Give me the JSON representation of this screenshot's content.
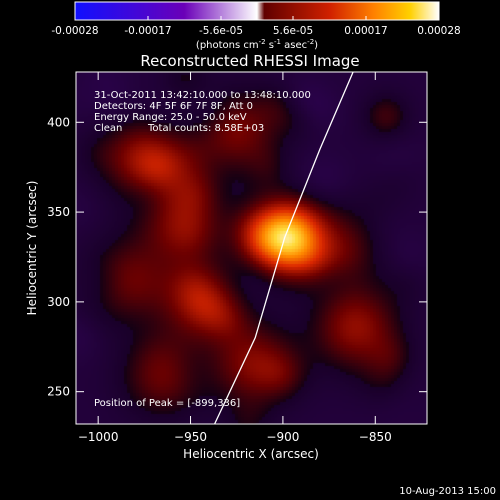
{
  "colorbar": {
    "ticks": [
      "-0.00028",
      "-0.00017",
      "-5.6e-05",
      "5.6e-05",
      "0.00017",
      "0.00028"
    ],
    "unit_main": "(photons cm",
    "unit_exp1": "-2",
    "unit_s": " s",
    "unit_exp2": "-1",
    "unit_asec": " asec",
    "unit_exp3": "-2",
    "unit_close": ")",
    "stops": [
      "#1010ff",
      "#6a00b8",
      "#ffffff",
      "#600000",
      "#d02000",
      "#ff8000",
      "#ffd000",
      "#ffffff"
    ]
  },
  "title": "Reconstructed RHESSI Image",
  "info": {
    "line1": "31-Oct-2011 13:42:10.000 to 13:48:10.000",
    "line2": "Detectors: 4F 5F 6F 7F 8F, Att 0",
    "line3": "Energy Range: 25.0 - 50.0 keV",
    "line4_a": "Clean",
    "line4_b": "Total counts: 8.58E+03",
    "peak": "Position of Peak = [-899,336]"
  },
  "chart_data": {
    "type": "heatmap",
    "title": "Reconstructed RHESSI Image",
    "xlabel": "Heliocentric X (arcsec)",
    "ylabel": "Heliocentric Y (arcsec)",
    "xlim": [
      -1012,
      -822
    ],
    "ylim": [
      232,
      428
    ],
    "x_ticks": [
      -1000,
      -950,
      -900,
      -850
    ],
    "y_ticks": [
      250,
      300,
      350,
      400
    ],
    "peak": [
      -899,
      336
    ],
    "limb_curve": [
      [
        -937,
        232
      ],
      [
        -915,
        280
      ],
      [
        -899,
        336
      ],
      [
        -880,
        385
      ],
      [
        -862,
        428
      ]
    ],
    "sources": [
      {
        "x": -899,
        "y": 336,
        "peak": 0.00028
      },
      {
        "x": -975,
        "y": 380,
        "peak": 0.00012
      },
      {
        "x": -955,
        "y": 345,
        "peak": 0.00011
      },
      {
        "x": -925,
        "y": 395,
        "peak": 0.0001
      },
      {
        "x": -985,
        "y": 312,
        "peak": 9e-05
      },
      {
        "x": -915,
        "y": 265,
        "peak": 0.00011
      },
      {
        "x": -860,
        "y": 285,
        "peak": 0.00012
      },
      {
        "x": -965,
        "y": 258,
        "peak": 9e-05
      },
      {
        "x": -870,
        "y": 330,
        "peak": 8e-05
      },
      {
        "x": -945,
        "y": 300,
        "peak": 0.0001
      }
    ]
  },
  "footer": {
    "timestamp": "10-Aug-2013 15:00"
  }
}
